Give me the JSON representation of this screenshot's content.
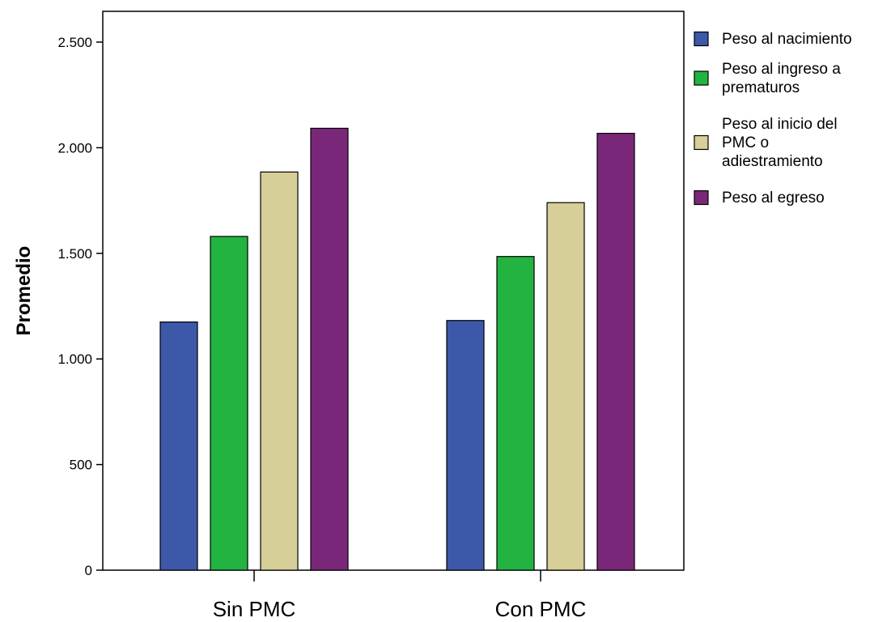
{
  "chart_data": {
    "type": "bar",
    "title": "",
    "xlabel": "",
    "ylabel": "Promedio",
    "ylim": [
      0,
      2600
    ],
    "yticks": [
      0,
      500,
      1000,
      1500,
      2000,
      2500
    ],
    "ytick_labels": [
      "0",
      "500",
      "1.000",
      "1.500",
      "2.000",
      "2.500"
    ],
    "categories": [
      "Sin PMC",
      "Con PMC"
    ],
    "grid": false,
    "legend_position": "right",
    "series": [
      {
        "name": "Peso al nacimiento",
        "legend_lines": [
          "Peso al nacimiento"
        ],
        "color": "#3d58a8",
        "values": [
          1175,
          1182
        ]
      },
      {
        "name": "Peso al ingreso a prematuros",
        "legend_lines": [
          "Peso al ingreso a",
          "prematuros"
        ],
        "color": "#23b341",
        "values": [
          1580,
          1485
        ]
      },
      {
        "name": "Peso al inicio del PMC o adiestramiento",
        "legend_lines": [
          "Peso al inicio del",
          "PMC o",
          "adiestramiento"
        ],
        "color": "#d6cf97",
        "values": [
          1885,
          1740
        ]
      },
      {
        "name": "Peso al egreso",
        "legend_lines": [
          "Peso al egreso"
        ],
        "color": "#7b2779",
        "values": [
          2092,
          2068
        ]
      }
    ]
  }
}
